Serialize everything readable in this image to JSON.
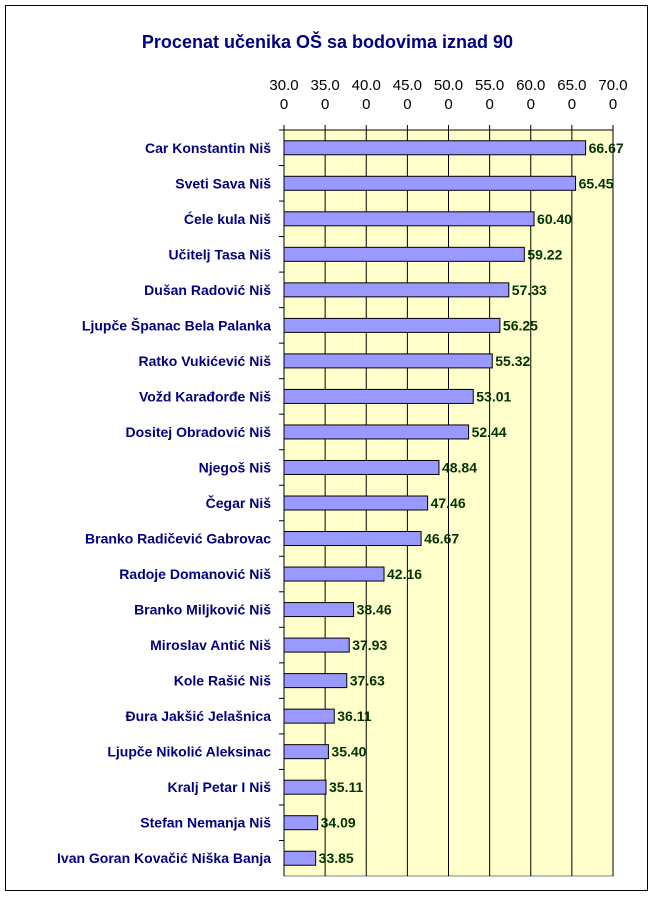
{
  "chart_data": {
    "type": "bar",
    "orientation": "horizontal",
    "title": "Procenat učenika OŠ sa bodovima iznad 90",
    "xlabel": "",
    "ylabel": "",
    "xlim": [
      30,
      70
    ],
    "x_ticks": [
      "30.0",
      "35.0",
      "40.0",
      "45.0",
      "50.0",
      "55.0",
      "60.0",
      "65.0",
      "70.0"
    ],
    "x_ticks_wrap": "0",
    "grid": true,
    "categories": [
      "Car Konstantin Niš",
      "Sveti Sava Niš",
      "Ćele kula Niš",
      "Učitelj Tasa Niš",
      "Dušan Radović Niš",
      "Ljupče Španac Bela Palanka",
      "Ratko Vukićević Niš",
      "Vožd Karađorđe Niš",
      "Dositej Obradović Niš",
      "Njegoš Niš",
      "Čegar Niš",
      "Branko Radičević Gabrovac",
      "Radoje Domanović Niš",
      "Branko Miljković Niš",
      "Miroslav Antić Niš",
      "Kole Rašić Niš",
      "Đura Jakšić Jelašnica",
      "Ljupče Nikolić Aleksinac",
      "Kralj Petar I Niš",
      "Stefan Nemanja Niš",
      "Ivan Goran Kovačić Niška Banja"
    ],
    "values": [
      66.67,
      65.45,
      60.4,
      59.22,
      57.33,
      56.25,
      55.32,
      53.01,
      52.44,
      48.84,
      47.46,
      46.67,
      42.16,
      38.46,
      37.93,
      37.63,
      36.11,
      35.4,
      35.11,
      34.09,
      33.85
    ],
    "value_labels": [
      "66.67",
      "65.45",
      "60.40",
      "59.22",
      "57.33",
      "56.25",
      "55.32",
      "53.01",
      "52.44",
      "48.84",
      "47.46",
      "46.67",
      "42.16",
      "38.46",
      "37.93",
      "37.63",
      "36.11",
      "35.40",
      "35.11",
      "34.09",
      "33.85"
    ],
    "colors": {
      "bar": "#9999ff",
      "plot_bg": "#ffffcc",
      "category_text": "#000080",
      "value_text": "#003300",
      "title_text": "#000080"
    }
  }
}
